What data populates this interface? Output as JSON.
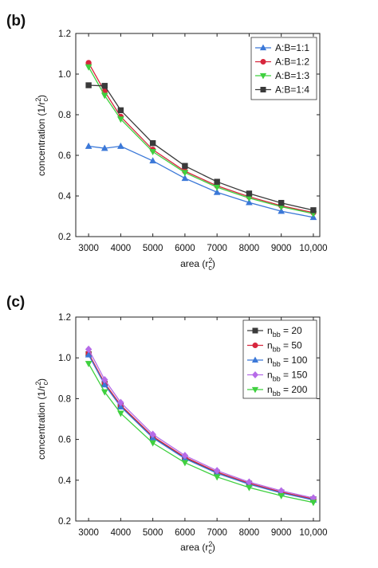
{
  "chart_data": [
    {
      "panel": "(b)",
      "type": "line",
      "xlabel": "area (r",
      "xlabel_sup": "2",
      "xlabel_sub": "c",
      "xlabel_end": ")",
      "ylabel": "concentration (1/r",
      "ylabel_sup": "2",
      "ylabel_sub": "c",
      "ylabel_end": ")",
      "xlim": [
        2600,
        10200
      ],
      "ylim": [
        0.2,
        1.2
      ],
      "xticks": [
        3000,
        4000,
        5000,
        6000,
        7000,
        8000,
        9000,
        10000
      ],
      "xtick_labels": [
        "3000",
        "4000",
        "5000",
        "6000",
        "7000",
        "8000",
        "9000",
        "10,000"
      ],
      "yticks": [
        0.2,
        0.4,
        0.6,
        0.8,
        1.0,
        1.2
      ],
      "ytick_labels": [
        "0.2",
        "0.4",
        "0.6",
        "0.8",
        "1.0",
        "1.2"
      ],
      "grid": false,
      "legend_position": "top-right",
      "x": [
        3000,
        3500,
        4000,
        5000,
        6000,
        7000,
        8000,
        9000,
        10000
      ],
      "series": [
        {
          "name": "A:B=1:1",
          "color": "#3b78d8",
          "marker": "triangle-up",
          "values": [
            0.645,
            0.635,
            0.645,
            0.573,
            0.487,
            0.418,
            0.368,
            0.325,
            0.295
          ]
        },
        {
          "name": "A:B=1:2",
          "color": "#d7263d",
          "marker": "circle",
          "values": [
            1.055,
            0.915,
            0.79,
            0.628,
            0.522,
            0.45,
            0.396,
            0.352,
            0.318
          ]
        },
        {
          "name": "A:B=1:3",
          "color": "#3fd03f",
          "marker": "triangle-down",
          "values": [
            1.035,
            0.895,
            0.778,
            0.618,
            0.515,
            0.443,
            0.39,
            0.347,
            0.313
          ]
        },
        {
          "name": "A:B=1:4",
          "color": "#3a3a3a",
          "marker": "square",
          "values": [
            0.945,
            0.942,
            0.822,
            0.66,
            0.548,
            0.47,
            0.412,
            0.366,
            0.33
          ]
        }
      ]
    },
    {
      "panel": "(c)",
      "type": "line",
      "xlabel": "area (r",
      "xlabel_sup": "2",
      "xlabel_sub": "c",
      "xlabel_end": ")",
      "ylabel": "concentration (1/r",
      "ylabel_sup": "2",
      "ylabel_sub": "c",
      "ylabel_end": ")",
      "xlim": [
        2600,
        10200
      ],
      "ylim": [
        0.2,
        1.2
      ],
      "xticks": [
        3000,
        4000,
        5000,
        6000,
        7000,
        8000,
        9000,
        10000
      ],
      "xtick_labels": [
        "3000",
        "4000",
        "5000",
        "6000",
        "7000",
        "8000",
        "9000",
        "10,000"
      ],
      "yticks": [
        0.2,
        0.4,
        0.6,
        0.8,
        1.0,
        1.2
      ],
      "ytick_labels": [
        "0.2",
        "0.4",
        "0.6",
        "0.8",
        "1.0",
        "1.2"
      ],
      "grid": false,
      "legend_position": "top-right",
      "x": [
        3000,
        3500,
        4000,
        5000,
        6000,
        7000,
        8000,
        9000,
        10000
      ],
      "series": [
        {
          "name_main": "n",
          "name_sub": "bb",
          "name_rest": " = 20",
          "color": "#3a3a3a",
          "marker": "square",
          "values": [
            1.018,
            0.872,
            0.764,
            0.612,
            0.51,
            0.437,
            0.383,
            0.34,
            0.306
          ]
        },
        {
          "name_main": "n",
          "name_sub": "bb",
          "name_rest": " = 50",
          "color": "#d7263d",
          "marker": "circle",
          "values": [
            1.022,
            0.876,
            0.768,
            0.615,
            0.513,
            0.44,
            0.385,
            0.342,
            0.308
          ]
        },
        {
          "name_main": "n",
          "name_sub": "bb",
          "name_rest": " = 100",
          "color": "#3b78d8",
          "marker": "triangle-up",
          "values": [
            1.015,
            0.868,
            0.76,
            0.608,
            0.506,
            0.434,
            0.38,
            0.337,
            0.303
          ]
        },
        {
          "name_main": "n",
          "name_sub": "bb",
          "name_rest": " = 150",
          "color": "#b66be8",
          "marker": "diamond",
          "values": [
            1.042,
            0.893,
            0.781,
            0.625,
            0.521,
            0.447,
            0.391,
            0.348,
            0.313
          ]
        },
        {
          "name_main": "n",
          "name_sub": "bb",
          "name_rest": " = 200",
          "color": "#3fd03f",
          "marker": "triangle-down",
          "values": [
            0.972,
            0.833,
            0.728,
            0.583,
            0.486,
            0.416,
            0.364,
            0.324,
            0.291
          ]
        }
      ]
    }
  ]
}
